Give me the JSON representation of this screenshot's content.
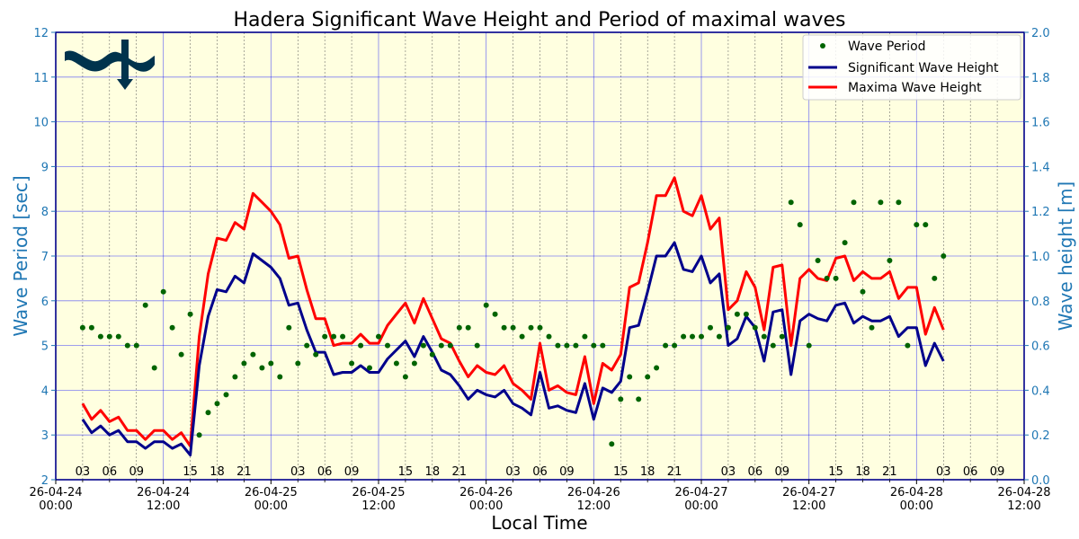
{
  "chart_data": {
    "type": "line",
    "title": "Hadera Significant Wave Height and Period of maximal waves",
    "xlabel": "Local Time",
    "ylabel_left": "Wave Period [sec]",
    "ylabel_right": "Wave height [m]",
    "ylim_left": [
      2,
      12
    ],
    "ylim_right": [
      0,
      2.0
    ],
    "xlim_hours": [
      0,
      108
    ],
    "grid": true,
    "legend_position": "top-right",
    "colors": {
      "period": "#006400",
      "significant": "#00008b",
      "maxima": "#ff0000",
      "axis_label": "#1f77b4",
      "background": "#ffffe0",
      "grid": "#0000ff"
    },
    "x_ticks": [
      {
        "h": 0,
        "date": "26-04-24",
        "time": "00:00"
      },
      {
        "h": 12,
        "date": "26-04-24",
        "time": "12:00"
      },
      {
        "h": 24,
        "date": "26-04-25",
        "time": "00:00"
      },
      {
        "h": 36,
        "date": "26-04-25",
        "time": "12:00"
      },
      {
        "h": 48,
        "date": "26-04-26",
        "time": "00:00"
      },
      {
        "h": 60,
        "date": "26-04-26",
        "time": "12:00"
      },
      {
        "h": 72,
        "date": "26-04-27",
        "time": "00:00"
      },
      {
        "h": 84,
        "date": "26-04-27",
        "time": "12:00"
      },
      {
        "h": 96,
        "date": "26-04-28",
        "time": "00:00"
      },
      {
        "h": 108,
        "date": "26-04-28",
        "time": "12:00"
      }
    ],
    "hour_labels": [
      {
        "h": 3,
        "label": "03"
      },
      {
        "h": 6,
        "label": "06"
      },
      {
        "h": 9,
        "label": "09"
      },
      {
        "h": 15,
        "label": "15"
      },
      {
        "h": 18,
        "label": "18"
      },
      {
        "h": 21,
        "label": "21"
      },
      {
        "h": 27,
        "label": "03"
      },
      {
        "h": 30,
        "label": "06"
      },
      {
        "h": 33,
        "label": "09"
      },
      {
        "h": 39,
        "label": "15"
      },
      {
        "h": 42,
        "label": "18"
      },
      {
        "h": 45,
        "label": "21"
      },
      {
        "h": 51,
        "label": "03"
      },
      {
        "h": 54,
        "label": "06"
      },
      {
        "h": 57,
        "label": "09"
      },
      {
        "h": 63,
        "label": "15"
      },
      {
        "h": 66,
        "label": "18"
      },
      {
        "h": 69,
        "label": "21"
      },
      {
        "h": 75,
        "label": "03"
      },
      {
        "h": 78,
        "label": "06"
      },
      {
        "h": 81,
        "label": "09"
      },
      {
        "h": 87,
        "label": "15"
      },
      {
        "h": 90,
        "label": "18"
      },
      {
        "h": 93,
        "label": "21"
      },
      {
        "h": 99,
        "label": "03"
      },
      {
        "h": 102,
        "label": "06"
      },
      {
        "h": 105,
        "label": "09"
      }
    ],
    "y_left_ticks": [
      2,
      3,
      4,
      5,
      6,
      7,
      8,
      9,
      10,
      11,
      12
    ],
    "y_right_ticks": [
      "0.0",
      "0.2",
      "0.4",
      "0.6",
      "0.8",
      "1.0",
      "1.2",
      "1.4",
      "1.6",
      "1.8",
      "2.0"
    ],
    "series": [
      {
        "name": "Wave Period",
        "kind": "scatter",
        "axis": "left",
        "x": [
          3,
          4,
          5,
          6,
          7,
          8,
          9,
          10,
          11,
          12,
          13,
          14,
          15,
          16,
          17,
          18,
          19,
          20,
          21,
          22,
          23,
          24,
          25,
          26,
          27,
          28,
          29,
          30,
          31,
          32,
          33,
          34,
          35,
          36,
          37,
          38,
          39,
          40,
          41,
          42,
          43,
          44,
          45,
          46,
          47,
          48,
          49,
          50,
          51,
          52,
          53,
          54,
          55,
          56,
          57,
          58,
          59,
          60,
          61,
          62,
          63,
          64,
          65,
          66,
          67,
          68,
          69,
          70,
          71,
          72,
          73,
          74,
          75,
          76,
          77,
          78,
          79,
          80,
          81,
          82,
          83,
          84,
          85,
          86,
          87,
          88,
          89,
          90,
          91,
          92,
          93,
          94,
          95,
          96,
          97,
          98,
          99
        ],
        "y": [
          5.4,
          5.4,
          5.2,
          5.2,
          5.2,
          5.0,
          5.0,
          5.9,
          4.5,
          6.2,
          5.4,
          4.8,
          5.7,
          3.0,
          3.5,
          3.7,
          3.9,
          4.3,
          4.6,
          4.8,
          4.5,
          4.6,
          4.3,
          5.4,
          4.6,
          5.0,
          4.8,
          5.2,
          5.2,
          5.2,
          4.6,
          5.0,
          4.5,
          5.2,
          5.0,
          4.6,
          4.3,
          4.6,
          5.0,
          4.8,
          5.0,
          5.0,
          5.4,
          5.4,
          5.0,
          5.9,
          5.7,
          5.4,
          5.4,
          5.2,
          5.4,
          5.4,
          5.2,
          5.0,
          5.0,
          5.0,
          5.2,
          5.0,
          5.0,
          2.8,
          3.8,
          4.3,
          3.8,
          4.3,
          4.5,
          5.0,
          5.0,
          5.2,
          5.2,
          5.2,
          5.4,
          5.2,
          5.4,
          5.7,
          5.7,
          5.4,
          5.2,
          5.0,
          5.2,
          8.2,
          7.7,
          5.0,
          6.9,
          6.5,
          6.5,
          7.3,
          8.2,
          6.2,
          5.4,
          8.2,
          6.9,
          8.2,
          5.0,
          7.7,
          7.7,
          6.5,
          7.0
        ]
      },
      {
        "name": "Significant Wave Height",
        "kind": "line",
        "axis": "right",
        "x": [
          3,
          4,
          5,
          6,
          7,
          8,
          9,
          10,
          11,
          12,
          13,
          14,
          15,
          16,
          17,
          18,
          19,
          20,
          21,
          22,
          23,
          24,
          25,
          26,
          27,
          28,
          29,
          30,
          31,
          32,
          33,
          34,
          35,
          36,
          37,
          38,
          39,
          40,
          41,
          42,
          43,
          44,
          45,
          46,
          47,
          48,
          49,
          50,
          51,
          52,
          53,
          54,
          55,
          56,
          57,
          58,
          59,
          60,
          61,
          62,
          63,
          64,
          65,
          66,
          67,
          68,
          69,
          70,
          71,
          72,
          73,
          74,
          75,
          76,
          77,
          78,
          79,
          80,
          81,
          82,
          83,
          84,
          85,
          86,
          87,
          88,
          89,
          90,
          91,
          92,
          93,
          94,
          95,
          96,
          97,
          98,
          99
        ],
        "y": [
          0.27,
          0.21,
          0.24,
          0.2,
          0.22,
          0.17,
          0.17,
          0.14,
          0.17,
          0.17,
          0.14,
          0.16,
          0.11,
          0.51,
          0.73,
          0.85,
          0.84,
          0.91,
          0.88,
          1.01,
          0.98,
          0.95,
          0.9,
          0.78,
          0.79,
          0.67,
          0.57,
          0.57,
          0.47,
          0.48,
          0.48,
          0.51,
          0.48,
          0.48,
          0.54,
          0.58,
          0.62,
          0.55,
          0.64,
          0.57,
          0.49,
          0.47,
          0.42,
          0.36,
          0.4,
          0.38,
          0.37,
          0.4,
          0.34,
          0.32,
          0.29,
          0.48,
          0.32,
          0.33,
          0.31,
          0.3,
          0.43,
          0.27,
          0.41,
          0.39,
          0.44,
          0.68,
          0.69,
          0.84,
          1.0,
          1.0,
          1.06,
          0.94,
          0.93,
          1.0,
          0.88,
          0.92,
          0.6,
          0.63,
          0.73,
          0.68,
          0.53,
          0.75,
          0.76,
          0.47,
          0.71,
          0.74,
          0.72,
          0.71,
          0.78,
          0.79,
          0.7,
          0.73,
          0.71,
          0.71,
          0.73,
          0.64,
          0.68,
          0.68,
          0.51,
          0.61,
          0.53
        ]
      },
      {
        "name": "Maxima Wave Height",
        "kind": "line",
        "axis": "right",
        "x": [
          3,
          4,
          5,
          6,
          7,
          8,
          9,
          10,
          11,
          12,
          13,
          14,
          15,
          16,
          17,
          18,
          19,
          20,
          21,
          22,
          23,
          24,
          25,
          26,
          27,
          28,
          29,
          30,
          31,
          32,
          33,
          34,
          35,
          36,
          37,
          38,
          39,
          40,
          41,
          42,
          43,
          44,
          45,
          46,
          47,
          48,
          49,
          50,
          51,
          52,
          53,
          54,
          55,
          56,
          57,
          58,
          59,
          60,
          61,
          62,
          63,
          64,
          65,
          66,
          67,
          68,
          69,
          70,
          71,
          72,
          73,
          74,
          75,
          76,
          77,
          78,
          79,
          80,
          81,
          82,
          83,
          84,
          85,
          86,
          87,
          88,
          89,
          90,
          91,
          92,
          93,
          94,
          95,
          96,
          97,
          98,
          99
        ],
        "y": [
          0.34,
          0.27,
          0.31,
          0.26,
          0.28,
          0.22,
          0.22,
          0.18,
          0.22,
          0.22,
          0.18,
          0.21,
          0.15,
          0.64,
          0.92,
          1.08,
          1.07,
          1.15,
          1.12,
          1.28,
          1.24,
          1.2,
          1.14,
          0.99,
          1.0,
          0.85,
          0.72,
          0.72,
          0.6,
          0.61,
          0.61,
          0.65,
          0.61,
          0.61,
          0.69,
          0.74,
          0.79,
          0.7,
          0.81,
          0.72,
          0.63,
          0.61,
          0.53,
          0.46,
          0.51,
          0.48,
          0.47,
          0.51,
          0.43,
          0.4,
          0.36,
          0.61,
          0.4,
          0.42,
          0.39,
          0.38,
          0.55,
          0.34,
          0.52,
          0.49,
          0.56,
          0.86,
          0.88,
          1.06,
          1.27,
          1.27,
          1.35,
          1.2,
          1.18,
          1.27,
          1.12,
          1.17,
          0.76,
          0.8,
          0.93,
          0.86,
          0.67,
          0.95,
          0.96,
          0.6,
          0.9,
          0.94,
          0.9,
          0.89,
          0.99,
          1.0,
          0.89,
          0.93,
          0.9,
          0.9,
          0.93,
          0.81,
          0.86,
          0.86,
          0.65,
          0.77,
          0.67
        ]
      }
    ]
  }
}
